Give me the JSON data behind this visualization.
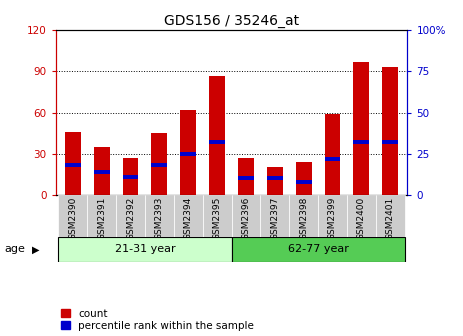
{
  "title": "GDS156 / 35246_at",
  "samples": [
    "GSM2390",
    "GSM2391",
    "GSM2392",
    "GSM2393",
    "GSM2394",
    "GSM2395",
    "GSM2396",
    "GSM2397",
    "GSM2398",
    "GSM2399",
    "GSM2400",
    "GSM2401"
  ],
  "red_values": [
    46,
    35,
    27,
    45,
    62,
    87,
    27,
    20,
    24,
    59,
    97,
    93
  ],
  "blue_values": [
    18,
    14,
    11,
    18,
    25,
    32,
    10,
    10,
    8,
    22,
    32,
    32
  ],
  "ylim_left": [
    0,
    120
  ],
  "ylim_right": [
    0,
    100
  ],
  "yticks_left": [
    0,
    30,
    60,
    90,
    120
  ],
  "yticks_right": [
    0,
    25,
    50,
    75,
    100
  ],
  "left_color": "#cc0000",
  "right_color": "#0000cc",
  "bar_width": 0.55,
  "group1_label": "21-31 year",
  "group2_label": "62-77 year",
  "group1_indices": [
    0,
    1,
    2,
    3,
    4,
    5
  ],
  "group2_indices": [
    6,
    7,
    8,
    9,
    10,
    11
  ],
  "age_label": "age",
  "legend1": "count",
  "legend2": "percentile rank within the sample",
  "bg_color": "#ffffff",
  "xtick_bg": "#cccccc",
  "group_bg1": "#ccffcc",
  "group_bg2": "#55cc55",
  "blue_color": "#0000cc"
}
